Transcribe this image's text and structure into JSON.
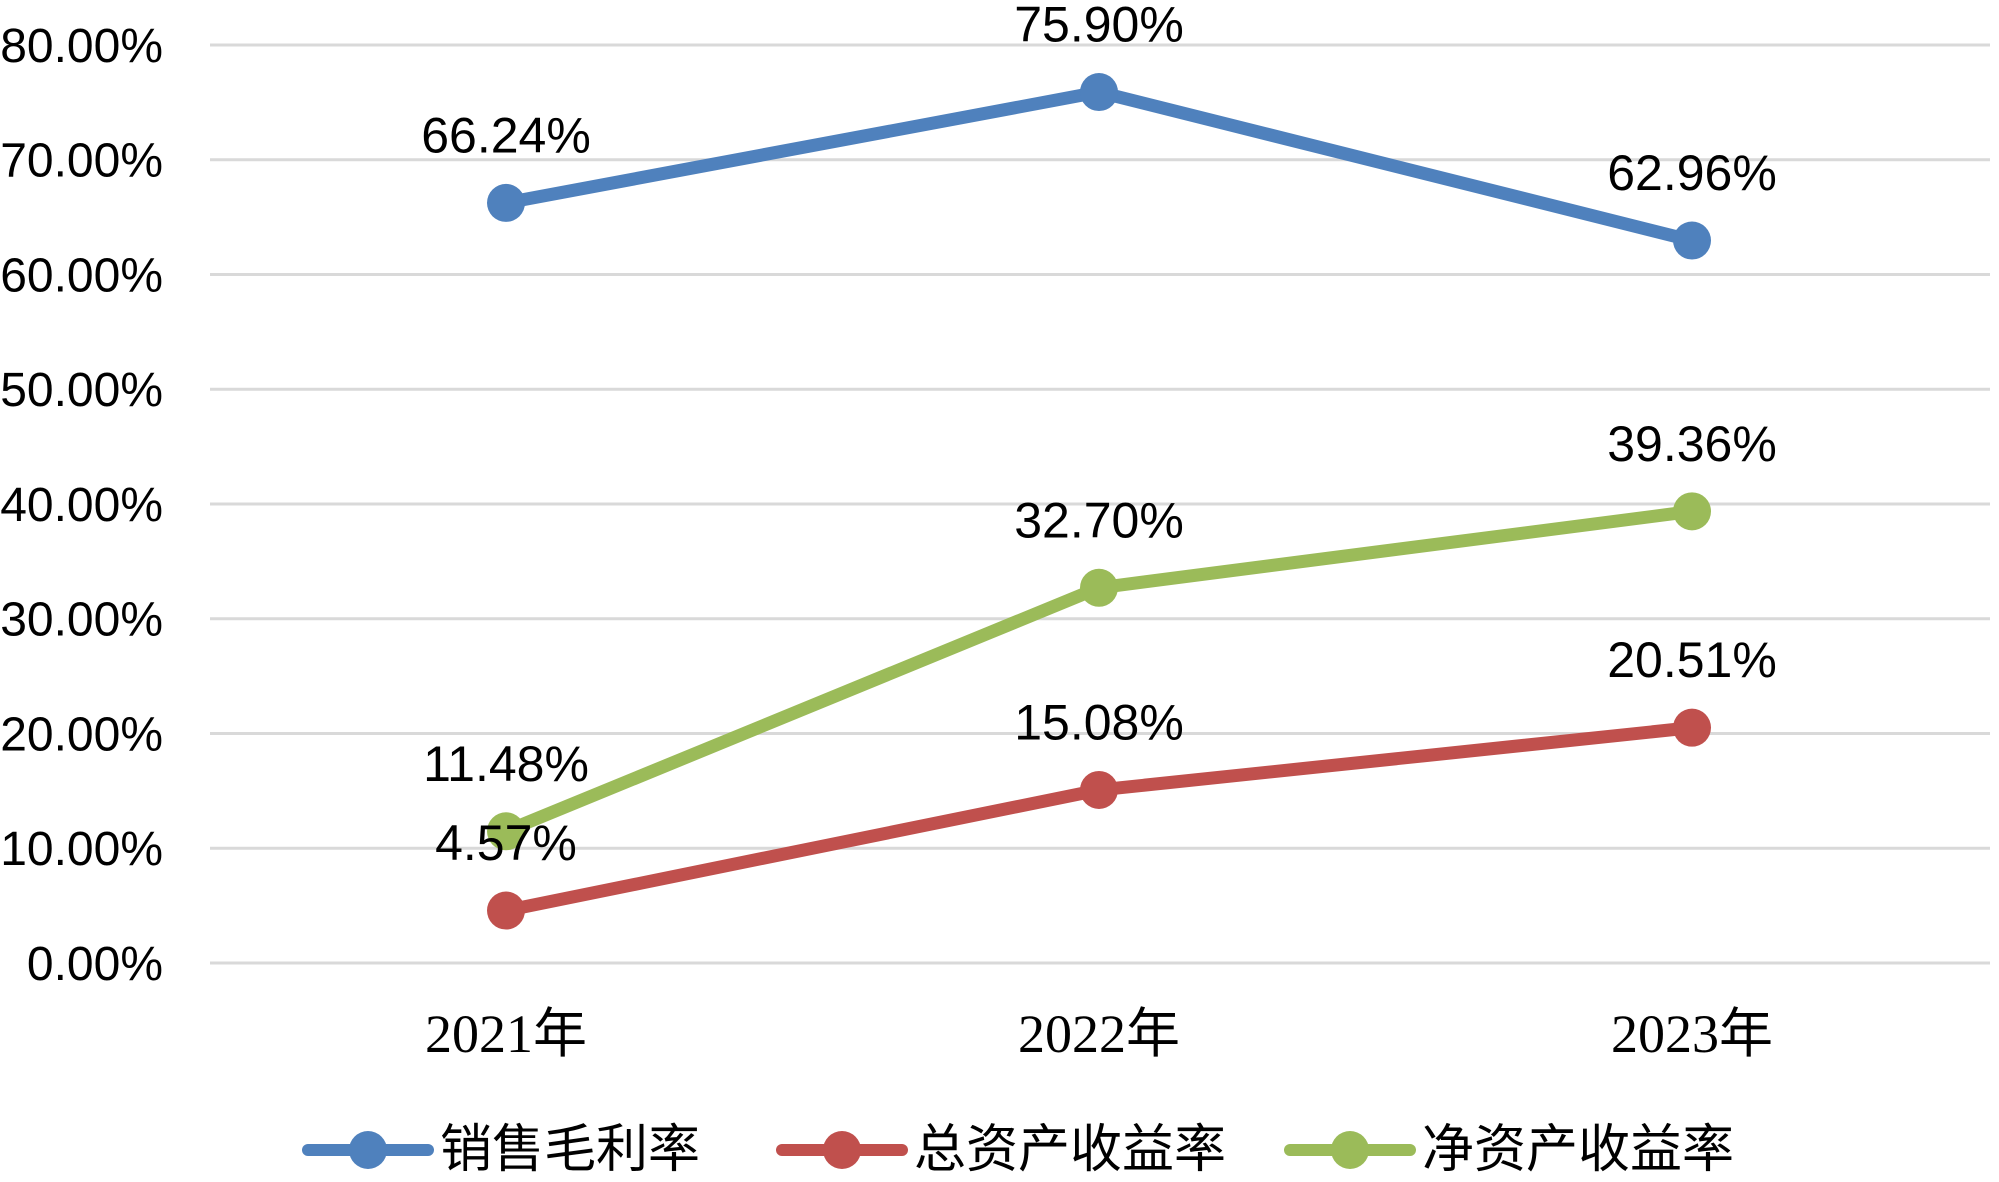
{
  "chart_data": {
    "type": "line",
    "title": "",
    "categories": [
      "2021年",
      "2022年",
      "2023年"
    ],
    "series": [
      {
        "name": "销售毛利率",
        "color": "#4F81BD",
        "values": [
          66.24,
          75.9,
          62.96
        ],
        "point_labels": [
          "66.24%",
          "75.90%",
          "62.96%"
        ]
      },
      {
        "name": "总资产收益率",
        "color": "#C0504D",
        "values": [
          4.57,
          15.08,
          20.51
        ],
        "point_labels": [
          "4.57%",
          "15.08%",
          "20.51%"
        ]
      },
      {
        "name": "净资产收益率",
        "color": "#9BBB59",
        "values": [
          11.48,
          32.7,
          39.36
        ],
        "point_labels": [
          "11.48%",
          "32.70%",
          "39.36%"
        ]
      }
    ],
    "y_axis": {
      "min": 0,
      "max": 80,
      "step": 10,
      "tick_labels": [
        "0.00%",
        "10.00%",
        "20.00%",
        "30.00%",
        "40.00%",
        "50.00%",
        "60.00%",
        "70.00%",
        "80.00%"
      ]
    },
    "x_axis": {
      "tick_labels": [
        "2021年",
        "2022年",
        "2023年"
      ]
    },
    "grid": true,
    "data_labels_shown": true,
    "legend_position": "bottom",
    "colors": {
      "gridline": "#D9D9D9",
      "text": "#000000",
      "background": "#FFFFFF"
    }
  }
}
